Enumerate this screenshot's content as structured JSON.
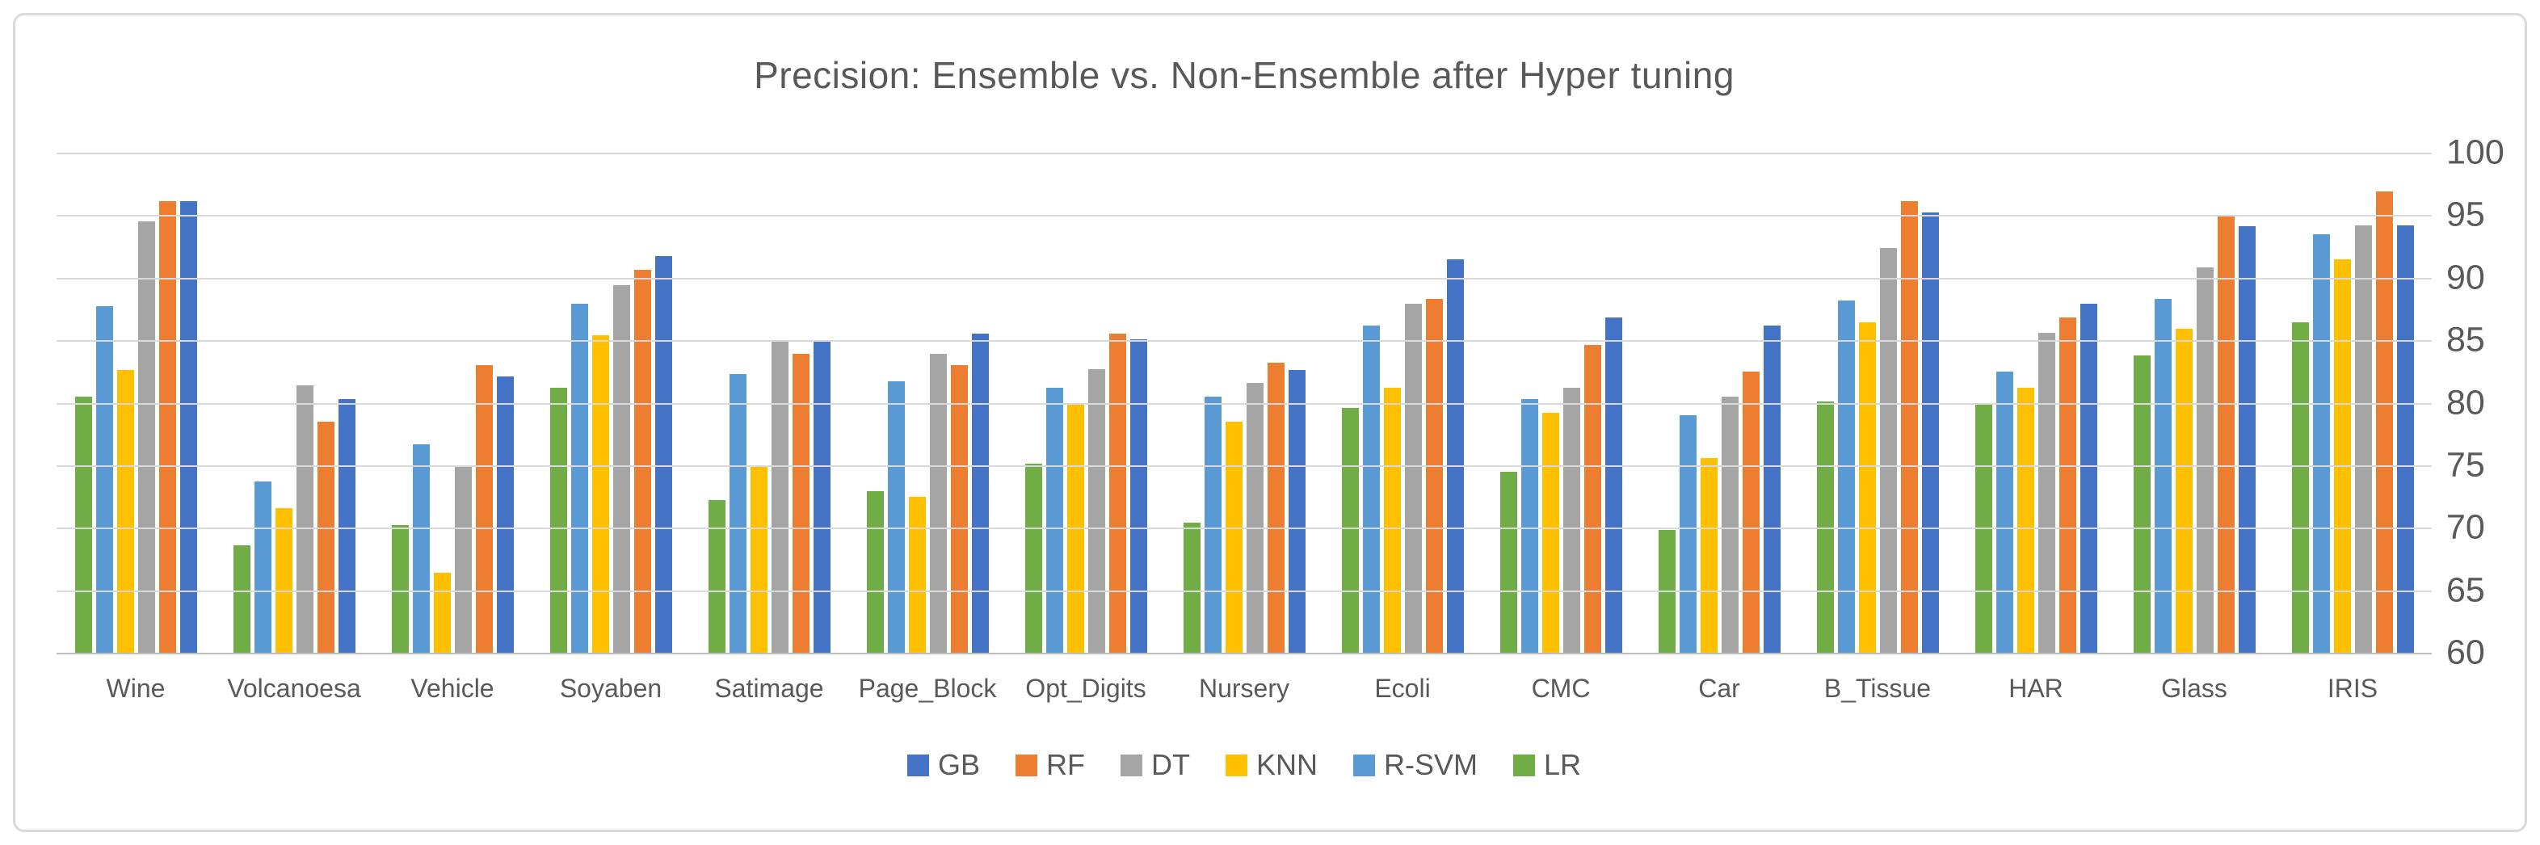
{
  "chart_data": {
    "type": "bar",
    "title": "Precision: Ensemble vs. Non-Ensemble after Hyper tuning",
    "categories": [
      "Wine",
      "Volcanoesa",
      "Vehicle",
      "Soyaben",
      "Satimage",
      "Page_Block",
      "Opt_Digits",
      "Nursery",
      "Ecoli",
      "CMC",
      "Car",
      "B_Tissue",
      "HAR",
      "Glass",
      "IRIS"
    ],
    "series": [
      {
        "name": "GB",
        "color": "#4472c4",
        "values": [
          96.1,
          80.3,
          82.1,
          91.7,
          85.0,
          85.5,
          85.1,
          82.6,
          91.5,
          86.8,
          86.2,
          95.2,
          87.9,
          94.1,
          94.2
        ]
      },
      {
        "name": "RF",
        "color": "#ed7d31",
        "values": [
          96.1,
          78.5,
          83.0,
          90.6,
          83.9,
          83.0,
          85.5,
          83.2,
          88.3,
          84.6,
          82.5,
          96.1,
          86.8,
          94.9,
          96.9
        ]
      },
      {
        "name": "DT",
        "color": "#a5a5a5",
        "values": [
          94.5,
          81.4,
          75.0,
          89.4,
          85.0,
          83.9,
          82.7,
          81.6,
          87.9,
          81.2,
          80.5,
          92.4,
          85.6,
          90.8,
          94.2
        ]
      },
      {
        "name": "KNN",
        "color": "#ffc000",
        "values": [
          82.6,
          71.6,
          66.4,
          85.4,
          75.0,
          72.5,
          80.0,
          78.5,
          81.2,
          79.2,
          75.6,
          86.4,
          81.2,
          85.9,
          91.5
        ]
      },
      {
        "name": "R-SVM",
        "color": "#5b9bd5",
        "values": [
          87.7,
          73.7,
          76.7,
          87.9,
          82.3,
          81.7,
          81.2,
          80.5,
          86.2,
          80.3,
          79.0,
          88.2,
          82.5,
          88.3,
          93.5
        ]
      },
      {
        "name": "LR",
        "color": "#70ad47",
        "values": [
          80.5,
          68.6,
          70.2,
          81.2,
          72.2,
          72.9,
          75.1,
          70.4,
          79.6,
          74.5,
          69.8,
          80.1,
          79.9,
          83.8,
          86.4
        ]
      }
    ],
    "bar_draw_order": "reversed-vs-legend",
    "xlabel": "",
    "ylabel": "",
    "ylim": [
      60,
      100
    ],
    "y_axis": {
      "side": "right",
      "ticks": [
        100,
        95,
        90,
        85,
        80,
        75,
        70,
        65,
        60
      ]
    },
    "grid": "horizontal",
    "legend_position": "bottom",
    "colors": {
      "text": "#595959",
      "gridline": "#d9d9d9",
      "axis_line": "#bfbfbf",
      "background": "#ffffff",
      "frame_border": "#d9d9d9"
    }
  }
}
